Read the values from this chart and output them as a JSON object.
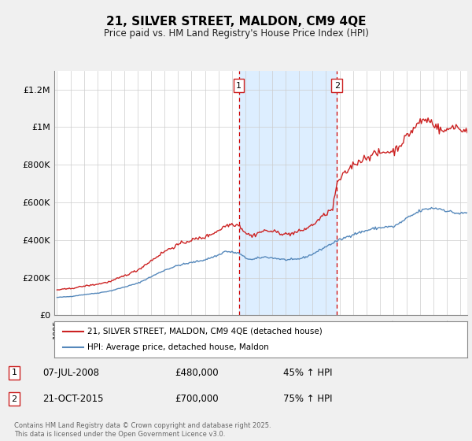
{
  "title": "21, SILVER STREET, MALDON, CM9 4QE",
  "subtitle": "Price paid vs. HM Land Registry's House Price Index (HPI)",
  "ylabel_ticks": [
    "£0",
    "£200K",
    "£400K",
    "£600K",
    "£800K",
    "£1M",
    "£1.2M"
  ],
  "ytick_values": [
    0,
    200000,
    400000,
    600000,
    800000,
    1000000,
    1200000
  ],
  "ylim": [
    0,
    1300000
  ],
  "xlim_start": 1994.8,
  "xlim_end": 2025.5,
  "xticks": [
    1995,
    1996,
    1997,
    1998,
    1999,
    2000,
    2001,
    2002,
    2003,
    2004,
    2005,
    2006,
    2007,
    2008,
    2009,
    2010,
    2011,
    2012,
    2013,
    2014,
    2015,
    2016,
    2017,
    2018,
    2019,
    2020,
    2021,
    2022,
    2023,
    2024,
    2025
  ],
  "sale1_date": 2008.52,
  "sale1_price": 480000,
  "sale1_label": "07-JUL-2008",
  "sale1_amount": "£480,000",
  "sale1_hpi": "45% ↑ HPI",
  "sale2_date": 2015.81,
  "sale2_price": 700000,
  "sale2_label": "21-OCT-2015",
  "sale2_amount": "£700,000",
  "sale2_hpi": "75% ↑ HPI",
  "shade_color": "#ddeeff",
  "dashed_color": "#cc0000",
  "red_line_color": "#cc2222",
  "blue_line_color": "#5588bb",
  "legend_label_red": "21, SILVER STREET, MALDON, CM9 4QE (detached house)",
  "legend_label_blue": "HPI: Average price, detached house, Maldon",
  "footer": "Contains HM Land Registry data © Crown copyright and database right 2025.\nThis data is licensed under the Open Government Licence v3.0.",
  "background_color": "#f0f0f0",
  "plot_bg_color": "#ffffff",
  "grid_color": "#cccccc",
  "blue_anchors": [
    [
      1995.0,
      95000
    ],
    [
      1996.0,
      100000
    ],
    [
      1997.0,
      110000
    ],
    [
      1998.0,
      118000
    ],
    [
      1999.0,
      130000
    ],
    [
      2000.0,
      150000
    ],
    [
      2001.0,
      170000
    ],
    [
      2002.0,
      205000
    ],
    [
      2003.0,
      240000
    ],
    [
      2004.0,
      265000
    ],
    [
      2005.0,
      280000
    ],
    [
      2006.0,
      295000
    ],
    [
      2007.0,
      320000
    ],
    [
      2007.5,
      340000
    ],
    [
      2008.0,
      335000
    ],
    [
      2008.52,
      330000
    ],
    [
      2009.0,
      305000
    ],
    [
      2009.5,
      295000
    ],
    [
      2010.0,
      305000
    ],
    [
      2010.5,
      310000
    ],
    [
      2011.0,
      305000
    ],
    [
      2011.5,
      300000
    ],
    [
      2012.0,
      295000
    ],
    [
      2012.5,
      295000
    ],
    [
      2013.0,
      300000
    ],
    [
      2013.5,
      310000
    ],
    [
      2014.0,
      325000
    ],
    [
      2014.5,
      345000
    ],
    [
      2015.0,
      365000
    ],
    [
      2015.81,
      395000
    ],
    [
      2016.0,
      400000
    ],
    [
      2016.5,
      415000
    ],
    [
      2017.0,
      430000
    ],
    [
      2017.5,
      440000
    ],
    [
      2018.0,
      450000
    ],
    [
      2018.5,
      460000
    ],
    [
      2019.0,
      465000
    ],
    [
      2019.5,
      470000
    ],
    [
      2020.0,
      470000
    ],
    [
      2020.5,
      490000
    ],
    [
      2021.0,
      515000
    ],
    [
      2021.5,
      535000
    ],
    [
      2022.0,
      555000
    ],
    [
      2022.5,
      565000
    ],
    [
      2023.0,
      570000
    ],
    [
      2023.5,
      565000
    ],
    [
      2024.0,
      555000
    ],
    [
      2024.5,
      545000
    ],
    [
      2025.0,
      540000
    ],
    [
      2025.5,
      545000
    ]
  ],
  "red_anchors": [
    [
      1995.0,
      135000
    ],
    [
      1996.0,
      142000
    ],
    [
      1997.0,
      155000
    ],
    [
      1998.0,
      165000
    ],
    [
      1999.0,
      180000
    ],
    [
      2000.0,
      210000
    ],
    [
      2001.0,
      240000
    ],
    [
      2002.0,
      290000
    ],
    [
      2003.0,
      340000
    ],
    [
      2004.0,
      375000
    ],
    [
      2005.0,
      400000
    ],
    [
      2006.0,
      415000
    ],
    [
      2007.0,
      450000
    ],
    [
      2007.5,
      475000
    ],
    [
      2008.0,
      485000
    ],
    [
      2008.52,
      480000
    ],
    [
      2009.0,
      440000
    ],
    [
      2009.5,
      420000
    ],
    [
      2010.0,
      440000
    ],
    [
      2010.5,
      450000
    ],
    [
      2011.0,
      445000
    ],
    [
      2011.5,
      440000
    ],
    [
      2012.0,
      430000
    ],
    [
      2012.5,
      435000
    ],
    [
      2013.0,
      445000
    ],
    [
      2013.5,
      460000
    ],
    [
      2014.0,
      480000
    ],
    [
      2014.5,
      510000
    ],
    [
      2015.0,
      540000
    ],
    [
      2015.5,
      565000
    ],
    [
      2015.81,
      700000
    ],
    [
      2016.0,
      720000
    ],
    [
      2016.5,
      760000
    ],
    [
      2017.0,
      800000
    ],
    [
      2017.5,
      820000
    ],
    [
      2018.0,
      840000
    ],
    [
      2018.5,
      855000
    ],
    [
      2019.0,
      860000
    ],
    [
      2019.5,
      870000
    ],
    [
      2020.0,
      870000
    ],
    [
      2020.5,
      905000
    ],
    [
      2021.0,
      950000
    ],
    [
      2021.5,
      990000
    ],
    [
      2022.0,
      1030000
    ],
    [
      2022.5,
      1040000
    ],
    [
      2023.0,
      1020000
    ],
    [
      2023.3,
      1000000
    ],
    [
      2023.5,
      980000
    ],
    [
      2024.0,
      980000
    ],
    [
      2024.5,
      1010000
    ],
    [
      2024.8,
      1000000
    ],
    [
      2025.0,
      980000
    ],
    [
      2025.5,
      990000
    ]
  ]
}
